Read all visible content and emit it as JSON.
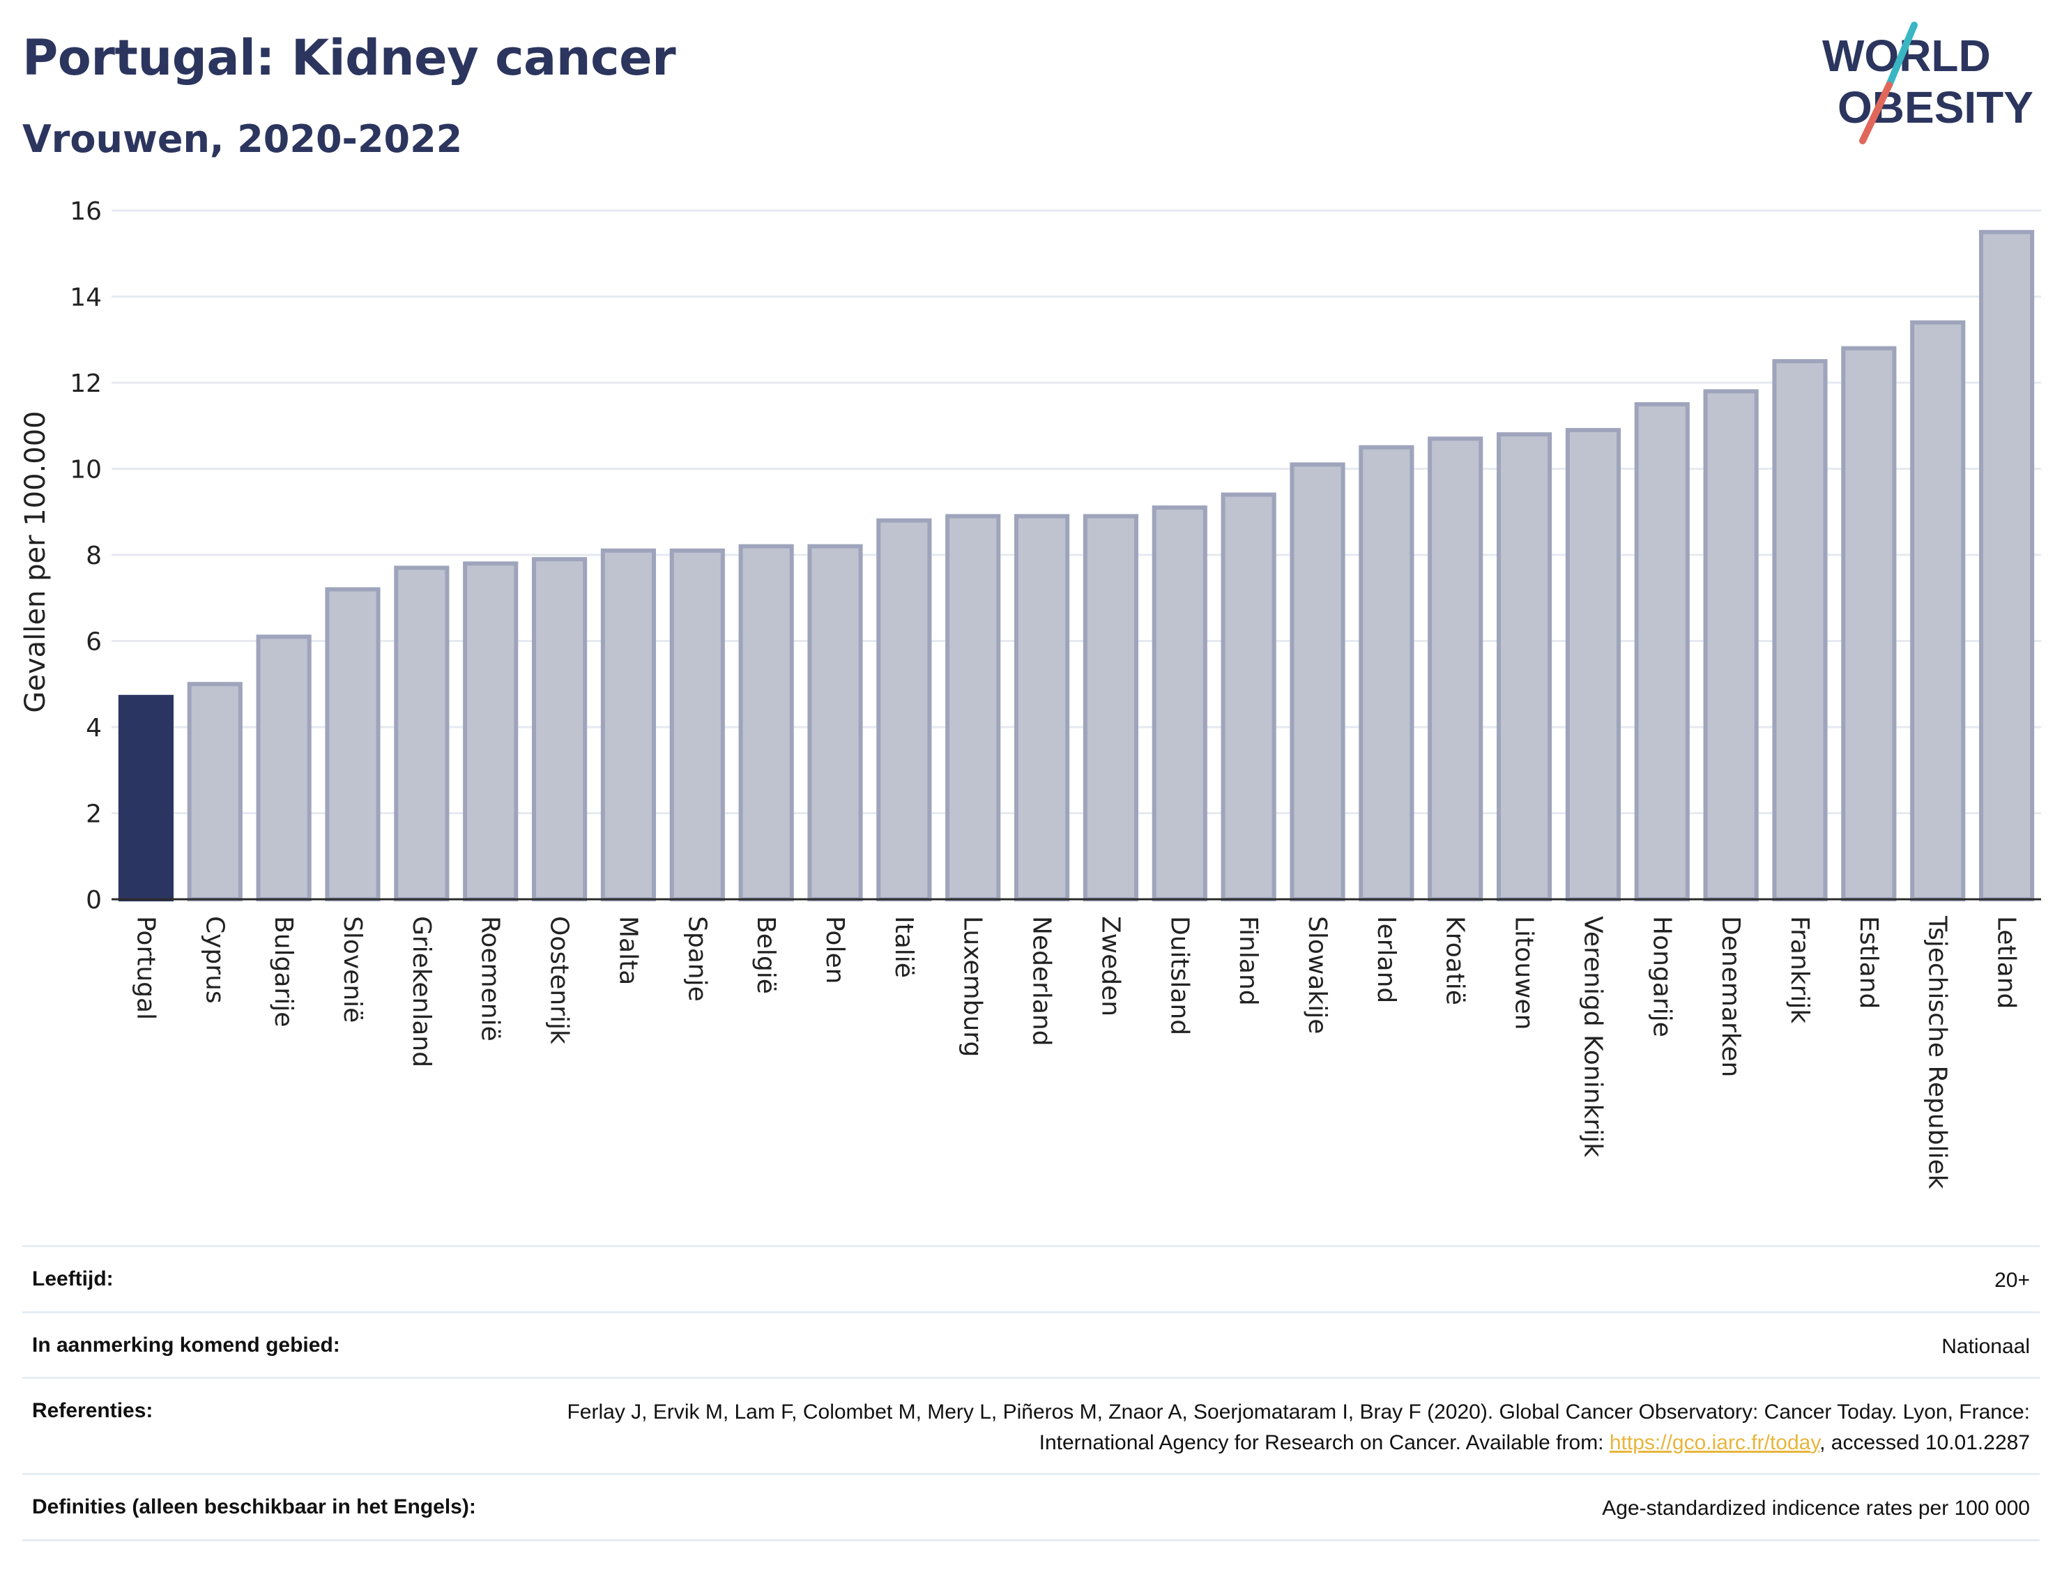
{
  "header": {
    "title": "Portugal: Kidney cancer",
    "subtitle": "Vrouwen, 2020-2022"
  },
  "logo": {
    "line1": "WORLD",
    "line2": "OBESITY",
    "accent_colors": [
      "#3ab6c3",
      "#e1675b"
    ]
  },
  "chart_data": {
    "type": "bar",
    "ylabel": "Gevallen per 100.000",
    "xlabel": "",
    "ylim": [
      0,
      16
    ],
    "yticks": [
      0,
      2,
      4,
      6,
      8,
      10,
      12,
      14,
      16
    ],
    "grid": true,
    "highlight_category": "Portugal",
    "colors": {
      "highlight": "#2b3562",
      "default_fill": "#bfc3d0",
      "default_stroke": "#9ea4bb"
    },
    "categories": [
      "Portugal",
      "Cyprus",
      "Bulgarije",
      "Slovenië",
      "Griekenland",
      "Roemenië",
      "Oostenrijk",
      "Malta",
      "Spanje",
      "België",
      "Polen",
      "Italië",
      "Luxemburg",
      "Nederland",
      "Zweden",
      "Duitsland",
      "Finland",
      "Slowakije",
      "Ierland",
      "Kroatië",
      "Litouwen",
      "Verenigd Koninkrijk",
      "Hongarije",
      "Denemarken",
      "Frankrijk",
      "Estland",
      "Tsjechische Republiek",
      "Letland"
    ],
    "values": [
      4.7,
      5.0,
      6.1,
      7.2,
      7.7,
      7.8,
      7.9,
      8.1,
      8.1,
      8.2,
      8.2,
      8.8,
      8.9,
      8.9,
      8.9,
      9.1,
      9.4,
      10.1,
      10.5,
      10.7,
      10.8,
      10.9,
      11.5,
      11.8,
      12.5,
      12.8,
      13.4,
      15.5
    ]
  },
  "meta": {
    "age_label": "Leeftijd:",
    "age_value": "20+",
    "area_label": "In aanmerking komend gebied:",
    "area_value": "Nationaal",
    "refs_label": "Referenties:",
    "refs_text_1": "Ferlay J, Ervik M, Lam F, Colombet M, Mery L, Piñeros M, Znaor A, Soerjomataram I, Bray F (2020). Global Cancer Observatory: Cancer Today. Lyon, France: International Agency for Research on Cancer. Available from: ",
    "refs_link": "https://gco.iarc.fr/today",
    "refs_text_2": ", accessed 10.01.2287",
    "defs_label": "Definities (alleen beschikbaar in het Engels):",
    "defs_value": "Age-standardized indicence rates per 100 000"
  }
}
